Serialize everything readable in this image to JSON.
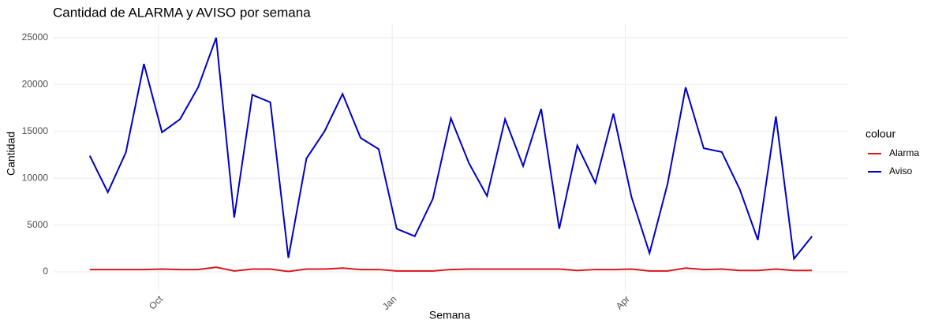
{
  "chart_data": {
    "type": "line",
    "title": "Cantidad de ALARMA y AVISO por semana",
    "x_label": "Semana",
    "y_label": "Cantidad",
    "legend_title": "colour",
    "legend": "right",
    "grid": true,
    "x": [
      1,
      2,
      3,
      4,
      5,
      6,
      7,
      8,
      9,
      10,
      11,
      12,
      13,
      14,
      15,
      16,
      17,
      18,
      19,
      20,
      21,
      22,
      23,
      24,
      25,
      26,
      27,
      28,
      29,
      30,
      31,
      32,
      33,
      34,
      35,
      36,
      37,
      38,
      39,
      40,
      41
    ],
    "xlim": [
      -1,
      43
    ],
    "xticks": [
      {
        "value": 4.8,
        "label": "Oct"
      },
      {
        "value": 17.75,
        "label": "Jan"
      },
      {
        "value": 30.66,
        "label": "Apr"
      }
    ],
    "ylim": [
      -2100,
      26500
    ],
    "yticks": [
      0,
      5000,
      10000,
      15000,
      20000,
      25000
    ],
    "series": [
      {
        "name": "Alarma",
        "color": "#d7191c",
        "values": [
          250,
          250,
          250,
          250,
          300,
          250,
          250,
          500,
          100,
          300,
          300,
          50,
          300,
          300,
          400,
          250,
          250,
          100,
          100,
          100,
          250,
          300,
          300,
          300,
          300,
          300,
          300,
          150,
          250,
          250,
          300,
          100,
          100,
          400,
          250,
          300,
          150,
          150,
          300,
          150,
          150
        ]
      },
      {
        "name": "Aviso",
        "color": "#0000c8",
        "values": [
          12400,
          8500,
          12750,
          22200,
          14900,
          16300,
          19700,
          25000,
          5800,
          18900,
          18100,
          1500,
          12100,
          15000,
          19000,
          14300,
          13100,
          4600,
          3800,
          7800,
          16400,
          11600,
          8100,
          16300,
          11300,
          17400,
          4600,
          13500,
          9500,
          16900,
          8000,
          2000,
          9400,
          19700,
          13200,
          12800,
          8800,
          3400,
          16600,
          1400,
          3800
        ]
      }
    ]
  }
}
